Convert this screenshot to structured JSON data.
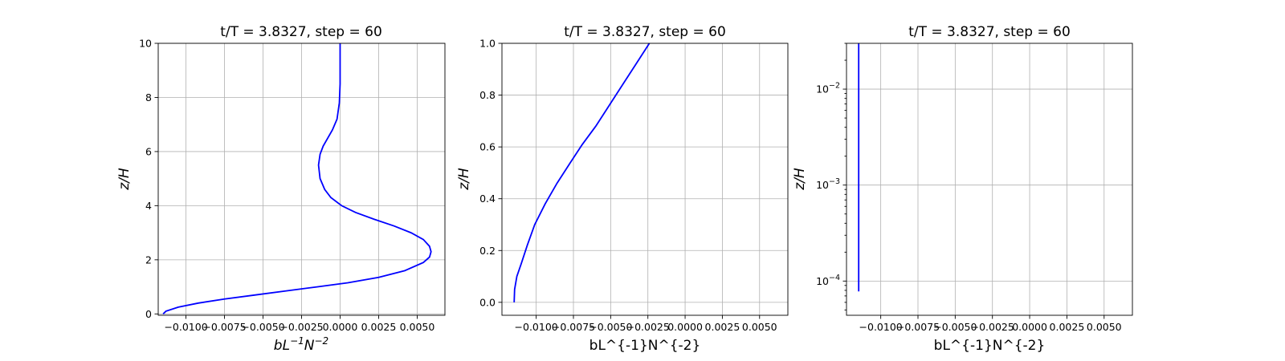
{
  "figure": {
    "background": "#ffffff",
    "line_color": "#0000ff"
  },
  "chart_data": [
    {
      "type": "line",
      "title": "t/T = 3.8327, step = 60",
      "xlabel_main": "bL",
      "xlabel_sup1": "−1",
      "xlabel_mid": "N",
      "xlabel_sup2": "−2",
      "ylabel": "z/H",
      "xscale": "linear",
      "yscale": "linear",
      "xlim": [
        -0.0118,
        0.0068
      ],
      "ylim": [
        -0.05,
        10
      ],
      "xticks": [
        -0.01,
        -0.0075,
        -0.005,
        -0.0025,
        0.0,
        0.0025,
        0.005
      ],
      "xticklabels": [
        "−0.0100",
        "−0.0075",
        "−0.0050",
        "−0.0025",
        "0.0000",
        "0.0025",
        "0.0050"
      ],
      "yticks": [
        0,
        2,
        4,
        6,
        8,
        10
      ],
      "yticklabels": [
        "0",
        "2",
        "4",
        "6",
        "8",
        "10"
      ],
      "grid": true,
      "series": [
        {
          "color": "#0000ff",
          "x": [
            -0.01148,
            -0.0113,
            -0.0105,
            -0.0092,
            -0.0075,
            -0.0055,
            -0.0035,
            -0.0015,
            0.0005,
            0.0025,
            0.0042,
            0.0054,
            0.0058,
            0.0059,
            0.0058,
            0.0054,
            0.0046,
            0.0035,
            0.0022,
            0.001,
            0.0001,
            -0.0006,
            -0.001,
            -0.0013,
            -0.0014,
            -0.0013,
            -0.0011,
            -0.0008,
            -0.0005,
            -0.0002,
            -5e-05,
            0.0,
            0.0,
            0.0
          ],
          "y": [
            0.0,
            0.1,
            0.25,
            0.4,
            0.55,
            0.7,
            0.85,
            1.0,
            1.15,
            1.35,
            1.6,
            1.9,
            2.1,
            2.3,
            2.5,
            2.75,
            3.0,
            3.25,
            3.5,
            3.75,
            4.0,
            4.3,
            4.6,
            5.0,
            5.5,
            5.9,
            6.2,
            6.5,
            6.8,
            7.2,
            7.8,
            8.5,
            9.2,
            10.0
          ]
        }
      ]
    },
    {
      "type": "line",
      "title": "t/T = 3.8327, step = 60",
      "xlabel": "bL^{-1}N^{-2}",
      "ylabel": "z/H",
      "xscale": "linear",
      "yscale": "linear",
      "xlim": [
        -0.0123,
        0.0069
      ],
      "ylim": [
        -0.05,
        1.0
      ],
      "xticks": [
        -0.01,
        -0.0075,
        -0.005,
        -0.0025,
        0.0,
        0.0025,
        0.005
      ],
      "xticklabels": [
        "−0.0100",
        "−0.0075",
        "−0.0050",
        "−0.0025",
        "0.0000",
        "0.0025",
        "0.0050"
      ],
      "yticks": [
        0.0,
        0.2,
        0.4,
        0.6,
        0.8,
        1.0
      ],
      "yticklabels": [
        "0.0",
        "0.2",
        "0.4",
        "0.6",
        "0.8",
        "1.0"
      ],
      "grid": true,
      "series": [
        {
          "color": "#0000ff",
          "x": [
            -0.01148,
            -0.01145,
            -0.0113,
            -0.011,
            -0.0106,
            -0.0101,
            -0.0094,
            -0.0086,
            -0.0077,
            -0.0069,
            -0.006,
            -0.0051,
            -0.0042,
            -0.0033,
            -0.0024
          ],
          "y": [
            0.0,
            0.05,
            0.1,
            0.15,
            0.22,
            0.3,
            0.38,
            0.46,
            0.54,
            0.61,
            0.68,
            0.76,
            0.84,
            0.92,
            1.0
          ]
        }
      ]
    },
    {
      "type": "line",
      "title": "t/T = 3.8327, step = 60",
      "xlabel": "bL^{-1}N^{-2}",
      "ylabel": "z/H",
      "xscale": "linear",
      "yscale": "log",
      "xlim": [
        -0.0123,
        0.0069
      ],
      "ylim": [
        4.4e-05,
        0.03
      ],
      "xticks": [
        -0.01,
        -0.0075,
        -0.005,
        -0.0025,
        0.0,
        0.0025,
        0.005
      ],
      "xticklabels": [
        "−0.0100",
        "−0.0075",
        "−0.0050",
        "−0.0025",
        "0.0000",
        "0.0025",
        "0.0050"
      ],
      "yticks": [
        0.0001,
        0.001,
        0.01
      ],
      "yticklabel_base": "10",
      "yticklabel_exps": [
        "−4",
        "−3",
        "−2"
      ],
      "grid": true,
      "series": [
        {
          "color": "#0000ff",
          "x": [
            -0.01148,
            -0.01148
          ],
          "y": [
            7.8e-05,
            0.03
          ]
        }
      ]
    }
  ]
}
